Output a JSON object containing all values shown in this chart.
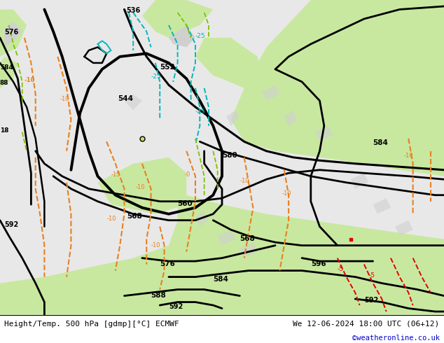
{
  "title_left": "Height/Temp. 500 hPa [gdmp][°C] ECMWF",
  "title_right": "We 12-06-2024 18:00 UTC (06+12)",
  "credit": "©weatheronline.co.uk",
  "bg_green": "#c8e8a0",
  "bg_gray": "#d0d0d0",
  "bg_white": "#e8e8e8",
  "contour_black": "#000000",
  "orange": "#e88020",
  "cyan": "#00b8b8",
  "lime": "#80c000",
  "red": "#e00000",
  "fig_width": 6.34,
  "fig_height": 4.9,
  "dpi": 100,
  "credit_color": "#0000cc",
  "title_fontsize": 8.0
}
